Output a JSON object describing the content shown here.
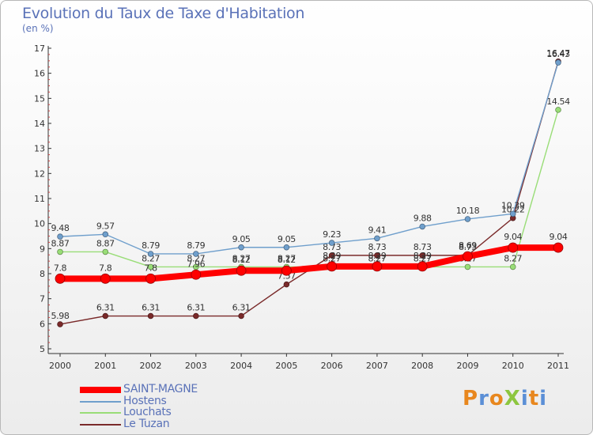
{
  "title": "Evolution du Taux de Taxe d'Habitation",
  "unit": "(en %)",
  "logo": {
    "text": "ProXiti",
    "colors": [
      "#e8871e",
      "#5b8fd6",
      "#e8871e",
      "#8dc63f",
      "#5b8fd6",
      "#e8871e",
      "#5b8fd6"
    ]
  },
  "chart_data": {
    "type": "line",
    "categories": [
      "2000",
      "2001",
      "2002",
      "2003",
      "2004",
      "2005",
      "2006",
      "2007",
      "2008",
      "2009",
      "2010",
      "2011"
    ],
    "ylim": [
      5,
      17
    ],
    "yticks": [
      "5",
      "6",
      "7",
      "8",
      "9",
      "10",
      "11",
      "12",
      "13",
      "14",
      "15",
      "16",
      "17"
    ],
    "grid": false,
    "legend_position": "bottom-left",
    "series": [
      {
        "name": "Le Tuzan",
        "color": "#7a2a2a",
        "values": [
          5.98,
          6.31,
          6.31,
          6.31,
          6.31,
          7.57,
          8.73,
          8.73,
          8.73,
          8.73,
          10.22,
          16.47
        ],
        "labels": [
          "5.98",
          "6.31",
          "6.31",
          "6.31",
          "6.31",
          "7.57",
          "8.73",
          "8.73",
          "8.73",
          "8.73",
          "10.22",
          "16.47"
        ]
      },
      {
        "name": "Louchats",
        "color": "#99dd77",
        "values": [
          8.87,
          8.87,
          8.27,
          8.27,
          8.27,
          8.27,
          8.27,
          8.27,
          8.27,
          8.27,
          8.27,
          14.54
        ],
        "labels": [
          "8.87",
          "8.87",
          "8.27",
          "8.27",
          "8.27",
          "8.27",
          "8.27",
          "8.27",
          "8.27",
          "8.27",
          "8.27",
          "14.54"
        ]
      },
      {
        "name": "Hostens",
        "color": "#6f9fcc",
        "values": [
          9.48,
          9.57,
          8.79,
          8.79,
          9.05,
          9.05,
          9.23,
          9.41,
          9.88,
          10.18,
          10.39,
          16.43
        ],
        "labels": [
          "9.48",
          "9.57",
          "8.79",
          "8.79",
          "9.05",
          "9.05",
          "9.23",
          "9.41",
          "9.88",
          "10.18",
          "10.39",
          "16.43"
        ]
      },
      {
        "name": "SAINT-MAGNE",
        "color": "#ff0000",
        "values": [
          7.8,
          7.8,
          7.8,
          7.96,
          8.12,
          8.12,
          8.29,
          8.29,
          8.29,
          8.69,
          9.04,
          9.04
        ],
        "labels": [
          "7.8",
          "7.8",
          "7.8",
          "7.96",
          "8.12",
          "8.12",
          "8.29",
          "8.29",
          "8.29",
          "8.69",
          "9.04",
          "9.04"
        ]
      }
    ],
    "legend": [
      {
        "name": "SAINT-MAGNE",
        "color": "#ff0000",
        "weight": "thick"
      },
      {
        "name": "Hostens",
        "color": "#6f9fcc",
        "weight": "thin"
      },
      {
        "name": "Louchats",
        "color": "#99dd77",
        "weight": "thin"
      },
      {
        "name": "Le Tuzan",
        "color": "#7a2a2a",
        "weight": "thin"
      }
    ]
  }
}
